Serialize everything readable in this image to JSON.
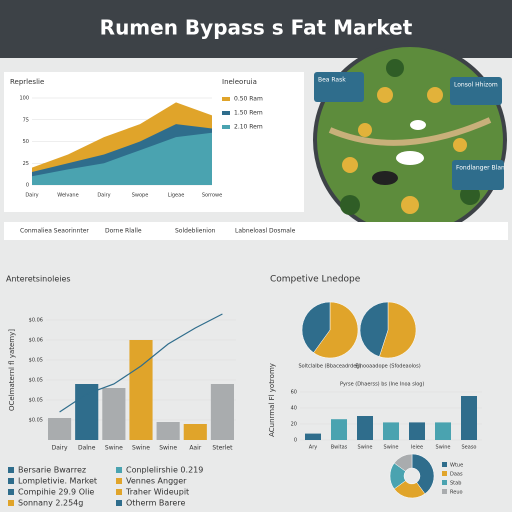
{
  "header": {
    "title": "Rumen Bypass s Fat Market"
  },
  "chart_data": [
    {
      "type": "area",
      "title": "Reprleslie",
      "legend_title": "Ineleoruia",
      "categories": [
        "Dairy",
        "Welvane",
        "Dairy",
        "Swope",
        "Ligeae",
        "Sorrowe"
      ],
      "ylim": [
        0,
        100
      ],
      "yticks": [
        0,
        25,
        50,
        75,
        100
      ],
      "series": [
        {
          "name": "0.50 Ram",
          "color": "#e0a42a",
          "values": [
            20,
            35,
            55,
            70,
            95,
            80
          ]
        },
        {
          "name": "1.50 Rem",
          "color": "#2f6d8c",
          "values": [
            15,
            25,
            35,
            50,
            70,
            65
          ]
        },
        {
          "name": "2.10 Rem",
          "color": "#4aa3b0",
          "values": [
            10,
            18,
            25,
            40,
            55,
            60
          ]
        }
      ]
    },
    {
      "type": "bar_line",
      "title": "Anteretsinoleies",
      "ylabel": "OCelmaternl fl yatemy]",
      "categories": [
        "Dairy",
        "Dalne",
        "Swine",
        "Swine",
        "Swine",
        "Aair",
        "Sterlet"
      ],
      "ylim": [
        0,
        7
      ],
      "yticks": [
        {
          "value": 1,
          "label": "$0.05"
        },
        {
          "value": 2,
          "label": "$0.05"
        },
        {
          "value": 3,
          "label": "$0.05"
        },
        {
          "value": 4,
          "label": "$0.05"
        },
        {
          "value": 5,
          "label": "$0.06"
        },
        {
          "value": 6,
          "label": "$0.06"
        }
      ],
      "bar_colors": [
        "#a9acae",
        "#2f6d8c",
        "#a9acae",
        "#e0a42a",
        "#a9acae",
        "#e0a42a",
        "#a9acae"
      ],
      "values": [
        1.1,
        2.8,
        2.6,
        5.0,
        0.9,
        0.8,
        2.8
      ],
      "line": {
        "color": "#2f6d8c",
        "values": [
          1.4,
          2.3,
          2.8,
          3.7,
          4.8,
          5.6,
          6.3
        ]
      }
    },
    {
      "type": "pie",
      "label": "Soltclalbe (Bbaceadrdeg)",
      "values": [
        60,
        40
      ],
      "colors": [
        "#e0a42a",
        "#2f6d8c"
      ]
    },
    {
      "type": "pie",
      "label": "Elnooaadope (Sfodeaolos)",
      "values": [
        55,
        45
      ],
      "colors": [
        "#e0a42a",
        "#2f6d8c"
      ]
    },
    {
      "type": "bar",
      "title": "Pyrse (Dhaerss) bs (Ine Inoa slog)",
      "ylabel": "ACunrmal Fl yotromy",
      "categories": [
        "Ary",
        "Bwitas",
        "Swine",
        "Swine",
        "Ieiee",
        "Swine",
        "Seaso"
      ],
      "values": [
        8,
        26,
        30,
        22,
        22,
        22,
        55
      ],
      "colors": [
        "#2f6d8c",
        "#4aa3b0",
        "#2f6d8c",
        "#4aa3b0",
        "#2f6d8c",
        "#4aa3b0",
        "#2f6d8c"
      ],
      "ylim": [
        0,
        60
      ],
      "yticks": [
        0,
        20,
        40,
        60
      ]
    },
    {
      "type": "donut",
      "categories": [
        "Wtue",
        "Daas",
        "Stab",
        "Reuo"
      ],
      "values": [
        40,
        25,
        20,
        15
      ],
      "colors": [
        "#2f6d8c",
        "#e0a42a",
        "#4aa3b0",
        "#a9acae"
      ]
    }
  ],
  "panel": {
    "title": "Competive Lnedope"
  },
  "map": {
    "callouts": [
      "Bea Rask",
      "Lonsol Hhizom",
      "Fondlanger Blan"
    ]
  },
  "toolbar": [
    "Conmaliea Seaorinnter",
    "Dorne Rlalle",
    "Soldeblienion",
    "Labneloasl Dosmale"
  ],
  "footer": [
    {
      "text": "Bersarie Bwarrez",
      "color": "#2f6d8c"
    },
    {
      "text": "Lompletivie. Market",
      "color": "#2f6d8c"
    },
    {
      "text": "Compihie 29.9 Olie",
      "color": "#2f6d8c"
    },
    {
      "text": "Sonnany 2.254g",
      "color": "#e0a42a"
    },
    {
      "text": "Conplelirshie 0.219",
      "color": "#4aa3b0"
    },
    {
      "text": "Vennes Angger",
      "color": "#e0a42a"
    },
    {
      "text": "Traher Wideupit",
      "color": "#e0a42a"
    },
    {
      "text": "Otherm Barere",
      "color": "#2f6d8c"
    }
  ]
}
